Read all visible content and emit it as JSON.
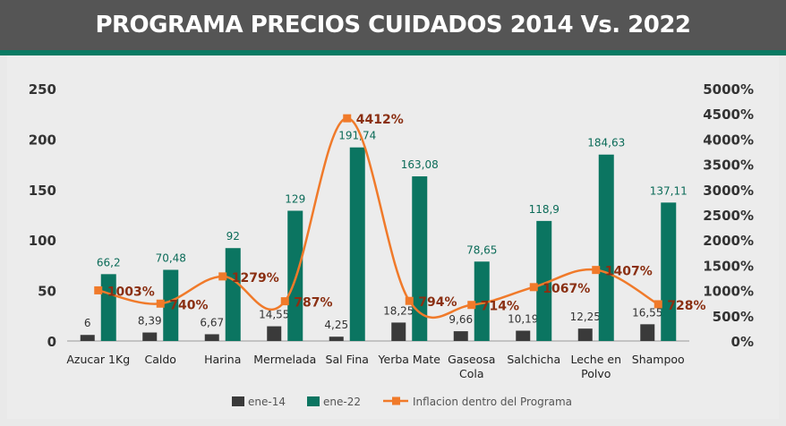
{
  "title": "PROGRAMA PRECIOS CUIDADOS 2014 Vs. 2022",
  "colors": {
    "header_bg": "#555555",
    "stripe": "#0a7a63",
    "bar_2014": "#3a3a3a",
    "bar_2022": "#0b7561",
    "line": "#f07a2a",
    "line_label": "#8a2f12",
    "value_2022": "#0b6b58"
  },
  "chart_data": {
    "type": "bar",
    "categories": [
      [
        "Azucar 1Kg"
      ],
      [
        "Caldo"
      ],
      [
        "Harina"
      ],
      [
        "Mermelada"
      ],
      [
        "Sal Fina"
      ],
      [
        "Yerba Mate"
      ],
      [
        "Gaseosa",
        "Cola"
      ],
      [
        "Salchicha"
      ],
      [
        "Leche en",
        "Polvo"
      ],
      [
        "Shampoo"
      ]
    ],
    "series": [
      {
        "name": "ene-14",
        "values": [
          6,
          8.39,
          6.67,
          14.55,
          4.25,
          18.25,
          9.66,
          10.19,
          12.25,
          16.55
        ],
        "labels": [
          "6",
          "8,39",
          "6,67",
          "14,55",
          "4,25",
          "18,25",
          "9,66",
          "10,19",
          "12,25",
          "16,55"
        ]
      },
      {
        "name": "ene-22",
        "values": [
          66.2,
          70.48,
          92,
          129,
          191.74,
          163.08,
          78.65,
          118.9,
          184.63,
          137.11
        ],
        "labels": [
          "66,2",
          "70,48",
          "92",
          "129",
          "191,74",
          "163,08",
          "78,65",
          "118,9",
          "184,63",
          "137,11"
        ]
      },
      {
        "name": "Inflacion dentro del Programa",
        "type": "line",
        "axis": "right",
        "values": [
          1003,
          740,
          1279,
          787,
          4412,
          794,
          714,
          1067,
          1407,
          728
        ],
        "labels": [
          "1003%",
          "740%",
          "1279%",
          "787%",
          "4412%",
          "794%",
          "714%",
          "1067%",
          "1407%",
          "728%"
        ]
      }
    ],
    "y_left": {
      "min": 0,
      "max": 250,
      "ticks": [
        "0",
        "50",
        "100",
        "150",
        "200",
        "250"
      ]
    },
    "y_right": {
      "min": 0,
      "max": 5000,
      "ticks": [
        "0%",
        "500%",
        "1000%",
        "1500%",
        "2000%",
        "2500%",
        "3000%",
        "3500%",
        "4000%",
        "4500%",
        "5000%"
      ]
    },
    "grid": false,
    "legend_position": "bottom"
  }
}
